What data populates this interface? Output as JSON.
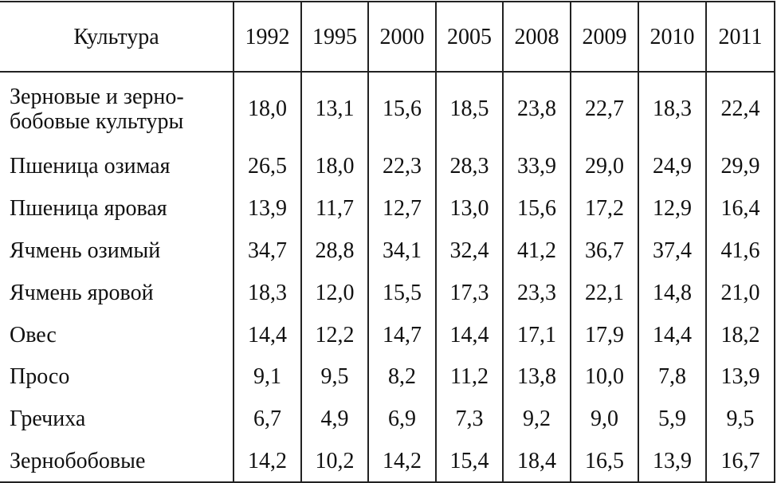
{
  "table": {
    "header": [
      "Культура",
      "1992",
      "1995",
      "2000",
      "2005",
      "2008",
      "2009",
      "2010",
      "2011"
    ],
    "rows": [
      [
        "Зерновые и зерно-\nбобовые культуры",
        "18,0",
        "13,1",
        "15,6",
        "18,5",
        "23,8",
        "22,7",
        "18,3",
        "22,4"
      ],
      [
        "Пшеница озимая",
        "26,5",
        "18,0",
        "22,3",
        "28,3",
        "33,9",
        "29,0",
        "24,9",
        "29,9"
      ],
      [
        "Пшеница яровая",
        "13,9",
        "11,7",
        "12,7",
        "13,0",
        "15,6",
        "17,2",
        "12,9",
        "16,4"
      ],
      [
        "Ячмень озимый",
        "34,7",
        "28,8",
        "34,1",
        "32,4",
        "41,2",
        "36,7",
        "37,4",
        "41,6"
      ],
      [
        "Ячмень яровой",
        "18,3",
        "12,0",
        "15,5",
        "17,3",
        "23,3",
        "22,1",
        "14,8",
        "21,0"
      ],
      [
        "Овес",
        "14,4",
        "12,2",
        "14,7",
        "14,4",
        "17,1",
        "17,9",
        "14,4",
        "18,2"
      ],
      [
        "Просо",
        "9,1",
        "9,5",
        "8,2",
        "11,2",
        "13,8",
        "10,0",
        "7,8",
        "13,9"
      ],
      [
        "Гречиха",
        "6,7",
        "4,9",
        "6,9",
        "7,3",
        "9,2",
        "9,0",
        "5,9",
        "9,5"
      ],
      [
        "Зернобобовые",
        "14,2",
        "10,2",
        "14,2",
        "15,4",
        "18,4",
        "16,5",
        "13,9",
        "16,7"
      ]
    ]
  }
}
